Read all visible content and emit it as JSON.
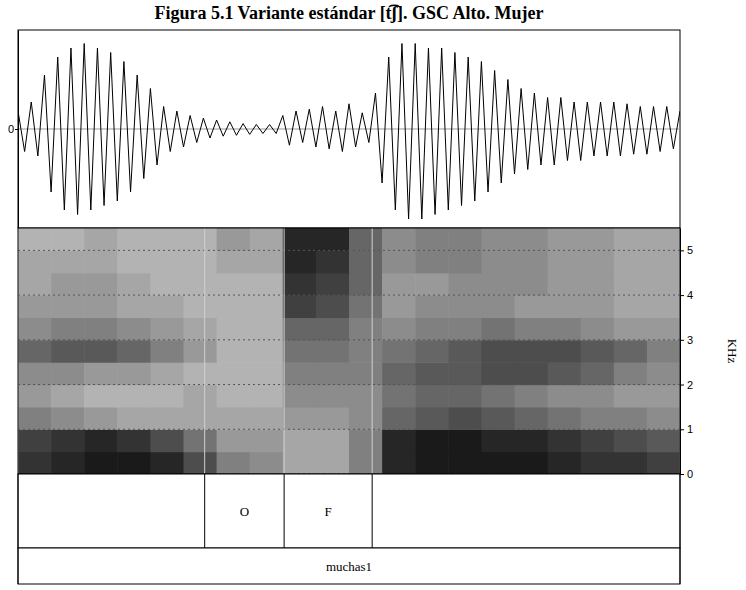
{
  "chart_data": {
    "type": "phonetic_analysis",
    "title": "Figura 5.1 Variante estándar [t͡ʃ]. GSC Alto. Mujer",
    "xlim": [
      0,
      1
    ],
    "tick_labels": "y",
    "waveform": {
      "type": "line",
      "color": "#000000",
      "ylim": [
        -1.1,
        1.1
      ],
      "yticks": [
        0
      ],
      "x": [
        0,
        0.01,
        0.02,
        0.03,
        0.04,
        0.05,
        0.06,
        0.07,
        0.08,
        0.09,
        0.1,
        0.11,
        0.12,
        0.13,
        0.14,
        0.15,
        0.16,
        0.17,
        0.18,
        0.19,
        0.2,
        0.21,
        0.22,
        0.23,
        0.24,
        0.25,
        0.26,
        0.27,
        0.28,
        0.29,
        0.3,
        0.31,
        0.32,
        0.33,
        0.34,
        0.35,
        0.36,
        0.37,
        0.38,
        0.39,
        0.4,
        0.41,
        0.42,
        0.43,
        0.44,
        0.45,
        0.46,
        0.47,
        0.48,
        0.49,
        0.5,
        0.51,
        0.52,
        0.53,
        0.54,
        0.55,
        0.56,
        0.57,
        0.58,
        0.59,
        0.6,
        0.61,
        0.62,
        0.63,
        0.64,
        0.65,
        0.66,
        0.67,
        0.68,
        0.69,
        0.7,
        0.71,
        0.72,
        0.73,
        0.74,
        0.75,
        0.76,
        0.77,
        0.78,
        0.79,
        0.8,
        0.81,
        0.82,
        0.83,
        0.84,
        0.85,
        0.86,
        0.87,
        0.88,
        0.89,
        0.9,
        0.91,
        0.92,
        0.93,
        0.94,
        0.95,
        0.96,
        0.97,
        0.98,
        0.99,
        1
      ],
      "values": [
        0.2,
        -0.25,
        0.3,
        -0.3,
        0.6,
        -0.7,
        0.8,
        -0.9,
        0.9,
        -0.95,
        0.95,
        -0.9,
        0.9,
        -0.85,
        0.85,
        -0.8,
        0.75,
        -0.7,
        0.6,
        -0.55,
        0.45,
        -0.4,
        0.25,
        -0.25,
        0.2,
        -0.2,
        0.15,
        -0.15,
        0.12,
        -0.1,
        0.1,
        -0.08,
        0.08,
        -0.07,
        0.06,
        -0.06,
        0.05,
        -0.05,
        0.05,
        -0.05,
        0.15,
        -0.18,
        0.2,
        -0.15,
        0.22,
        -0.2,
        0.25,
        -0.22,
        0.2,
        -0.25,
        0.28,
        -0.2,
        0.18,
        -0.15,
        0.4,
        -0.6,
        0.8,
        -0.9,
        0.95,
        -1.0,
        0.95,
        -1.0,
        0.9,
        -0.95,
        0.9,
        -0.9,
        0.85,
        -0.85,
        0.8,
        -0.8,
        0.75,
        -0.7,
        0.65,
        -0.6,
        0.55,
        -0.5,
        0.45,
        -0.45,
        0.4,
        -0.4,
        0.35,
        -0.4,
        0.35,
        -0.35,
        0.3,
        -0.35,
        0.3,
        -0.3,
        0.3,
        -0.3,
        0.3,
        -0.3,
        0.28,
        -0.28,
        0.25,
        -0.28,
        0.25,
        -0.25,
        0.25,
        -0.22,
        0.2
      ]
    },
    "spectrogram": {
      "type": "heatmap",
      "y_label": "KHz",
      "ylim": [
        0,
        5.5
      ],
      "yticks": [
        0,
        1,
        2,
        3,
        4,
        5
      ],
      "grid": true,
      "color_range": [
        0,
        1
      ],
      "x_edges": [
        0,
        0.05,
        0.1,
        0.15,
        0.2,
        0.25,
        0.3,
        0.35,
        0.4,
        0.45,
        0.5,
        0.55,
        0.6,
        0.65,
        0.7,
        0.75,
        0.8,
        0.85,
        0.9,
        0.95,
        1
      ],
      "y_edges": [
        0,
        0.5,
        1,
        1.5,
        2,
        2.5,
        3,
        3.5,
        4,
        4.5,
        5,
        5.5
      ],
      "cells": [
        [
          0.8,
          0.85,
          0.9,
          0.9,
          0.85,
          0.7,
          0.5,
          0.45,
          0.35,
          0.35,
          0.5,
          0.85,
          0.9,
          0.9,
          0.9,
          0.9,
          0.85,
          0.8,
          0.8,
          0.75
        ],
        [
          0.75,
          0.8,
          0.85,
          0.8,
          0.7,
          0.55,
          0.4,
          0.4,
          0.35,
          0.35,
          0.5,
          0.85,
          0.9,
          0.9,
          0.85,
          0.85,
          0.8,
          0.75,
          0.7,
          0.65
        ],
        [
          0.5,
          0.45,
          0.4,
          0.35,
          0.35,
          0.35,
          0.35,
          0.35,
          0.4,
          0.4,
          0.45,
          0.6,
          0.65,
          0.7,
          0.65,
          0.6,
          0.55,
          0.5,
          0.5,
          0.45
        ],
        [
          0.4,
          0.35,
          0.3,
          0.3,
          0.3,
          0.35,
          0.3,
          0.3,
          0.45,
          0.45,
          0.45,
          0.55,
          0.6,
          0.6,
          0.55,
          0.5,
          0.45,
          0.45,
          0.4,
          0.4
        ],
        [
          0.45,
          0.45,
          0.4,
          0.4,
          0.35,
          0.3,
          0.3,
          0.3,
          0.5,
          0.5,
          0.5,
          0.6,
          0.65,
          0.65,
          0.7,
          0.7,
          0.65,
          0.6,
          0.5,
          0.45
        ],
        [
          0.6,
          0.65,
          0.65,
          0.6,
          0.5,
          0.4,
          0.3,
          0.3,
          0.55,
          0.55,
          0.5,
          0.55,
          0.6,
          0.65,
          0.7,
          0.7,
          0.7,
          0.65,
          0.6,
          0.5
        ],
        [
          0.45,
          0.5,
          0.5,
          0.45,
          0.4,
          0.35,
          0.3,
          0.3,
          0.6,
          0.6,
          0.5,
          0.45,
          0.5,
          0.5,
          0.55,
          0.5,
          0.5,
          0.45,
          0.4,
          0.4
        ],
        [
          0.4,
          0.4,
          0.4,
          0.35,
          0.35,
          0.3,
          0.3,
          0.3,
          0.75,
          0.7,
          0.55,
          0.4,
          0.45,
          0.45,
          0.45,
          0.4,
          0.4,
          0.4,
          0.35,
          0.35
        ],
        [
          0.35,
          0.4,
          0.4,
          0.35,
          0.3,
          0.3,
          0.3,
          0.3,
          0.8,
          0.75,
          0.6,
          0.4,
          0.4,
          0.45,
          0.45,
          0.45,
          0.4,
          0.4,
          0.35,
          0.35
        ],
        [
          0.35,
          0.35,
          0.35,
          0.3,
          0.3,
          0.3,
          0.35,
          0.35,
          0.85,
          0.8,
          0.6,
          0.45,
          0.5,
          0.5,
          0.45,
          0.45,
          0.4,
          0.4,
          0.35,
          0.35
        ],
        [
          0.3,
          0.3,
          0.35,
          0.3,
          0.3,
          0.3,
          0.4,
          0.35,
          0.85,
          0.85,
          0.6,
          0.45,
          0.5,
          0.5,
          0.45,
          0.45,
          0.4,
          0.4,
          0.35,
          0.35
        ]
      ]
    },
    "tiers": [
      {
        "boundaries": [
          0,
          0.282,
          0.402,
          0.535,
          1
        ],
        "labels": [
          null,
          "O",
          "F",
          null
        ]
      },
      {
        "boundaries": [
          0,
          1
        ],
        "labels": [
          "muchas1"
        ]
      }
    ]
  }
}
